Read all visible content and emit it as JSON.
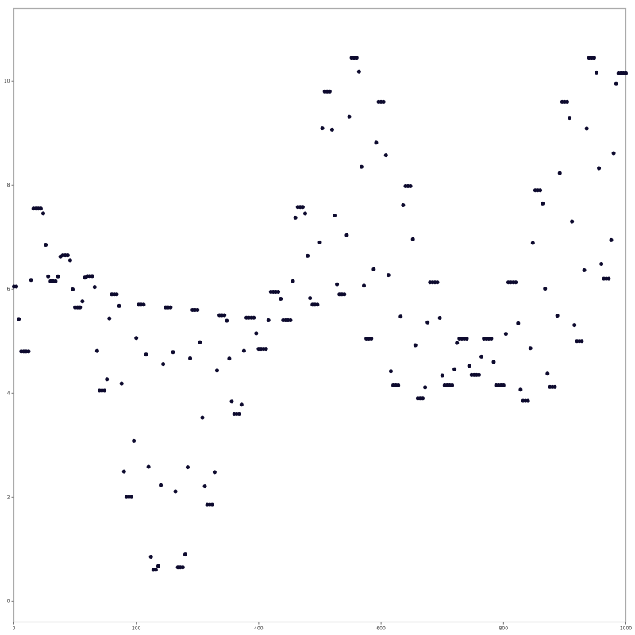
{
  "chart_data": {
    "type": "scatter",
    "title": "",
    "xlabel": "",
    "ylabel": "",
    "xlim": [
      0,
      1000
    ],
    "ylim": [
      -0.4,
      11.4
    ],
    "x_ticks": [
      0,
      200,
      400,
      600,
      800,
      1000
    ],
    "y_ticks": [
      0,
      2,
      4,
      6,
      8,
      10
    ],
    "x_tick_labels": [
      "0",
      "200",
      "400",
      "600",
      "800",
      "1000"
    ],
    "y_tick_labels": [
      "0",
      "2",
      "4",
      "6",
      "8",
      "10"
    ],
    "grid": false,
    "point_spacing": 4,
    "marker_color": "#0d0a2e",
    "frame_color": "#aaaaaa",
    "anchors": [
      [
        0,
        6.05
      ],
      [
        4,
        6.05
      ],
      [
        12,
        4.8
      ],
      [
        24,
        4.8
      ],
      [
        32,
        7.55
      ],
      [
        46,
        7.55
      ],
      [
        58,
        6.15
      ],
      [
        70,
        6.15
      ],
      [
        77,
        6.65
      ],
      [
        90,
        6.65
      ],
      [
        100,
        5.65
      ],
      [
        110,
        5.65
      ],
      [
        117,
        6.25
      ],
      [
        130,
        6.25
      ],
      [
        140,
        4.05
      ],
      [
        150,
        4.05
      ],
      [
        159,
        5.9
      ],
      [
        170,
        5.9
      ],
      [
        183,
        2.0
      ],
      [
        192,
        2.0
      ],
      [
        203,
        5.7
      ],
      [
        212,
        5.7
      ],
      [
        226,
        0.6
      ],
      [
        235,
        0.6
      ],
      [
        248,
        5.65
      ],
      [
        257,
        5.65
      ],
      [
        268,
        0.65
      ],
      [
        278,
        0.65
      ],
      [
        292,
        5.6
      ],
      [
        300,
        5.6
      ],
      [
        315,
        1.85
      ],
      [
        325,
        1.85
      ],
      [
        336,
        5.5
      ],
      [
        346,
        5.5
      ],
      [
        359,
        3.6
      ],
      [
        370,
        3.6
      ],
      [
        380,
        5.45
      ],
      [
        392,
        5.45
      ],
      [
        400,
        4.85
      ],
      [
        412,
        4.85
      ],
      [
        420,
        5.95
      ],
      [
        434,
        5.95
      ],
      [
        440,
        5.4
      ],
      [
        452,
        5.4
      ],
      [
        462,
        7.58
      ],
      [
        474,
        7.58
      ],
      [
        486,
        5.7
      ],
      [
        496,
        5.7
      ],
      [
        507,
        9.8
      ],
      [
        516,
        9.8
      ],
      [
        530,
        5.9
      ],
      [
        540,
        5.9
      ],
      [
        552,
        10.45
      ],
      [
        562,
        10.45
      ],
      [
        576,
        5.05
      ],
      [
        584,
        5.05
      ],
      [
        595,
        9.6
      ],
      [
        604,
        9.6
      ],
      [
        618,
        4.15
      ],
      [
        628,
        4.15
      ],
      [
        638,
        7.98
      ],
      [
        648,
        7.98
      ],
      [
        660,
        3.9
      ],
      [
        670,
        3.9
      ],
      [
        680,
        6.13
      ],
      [
        692,
        6.13
      ],
      [
        702,
        4.15
      ],
      [
        716,
        4.15
      ],
      [
        726,
        5.05
      ],
      [
        740,
        5.05
      ],
      [
        746,
        4.35
      ],
      [
        760,
        4.35
      ],
      [
        768,
        5.05
      ],
      [
        780,
        5.05
      ],
      [
        788,
        4.15
      ],
      [
        800,
        4.15
      ],
      [
        808,
        6.13
      ],
      [
        820,
        6.13
      ],
      [
        830,
        3.85
      ],
      [
        840,
        3.85
      ],
      [
        852,
        7.9
      ],
      [
        862,
        7.9
      ],
      [
        874,
        4.12
      ],
      [
        884,
        4.12
      ],
      [
        896,
        9.6
      ],
      [
        906,
        9.6
      ],
      [
        918,
        5.0
      ],
      [
        928,
        5.0
      ],
      [
        940,
        10.45
      ],
      [
        950,
        10.45
      ],
      [
        962,
        6.2
      ],
      [
        972,
        6.2
      ],
      [
        986,
        10.15
      ],
      [
        1000,
        10.15
      ]
    ]
  }
}
